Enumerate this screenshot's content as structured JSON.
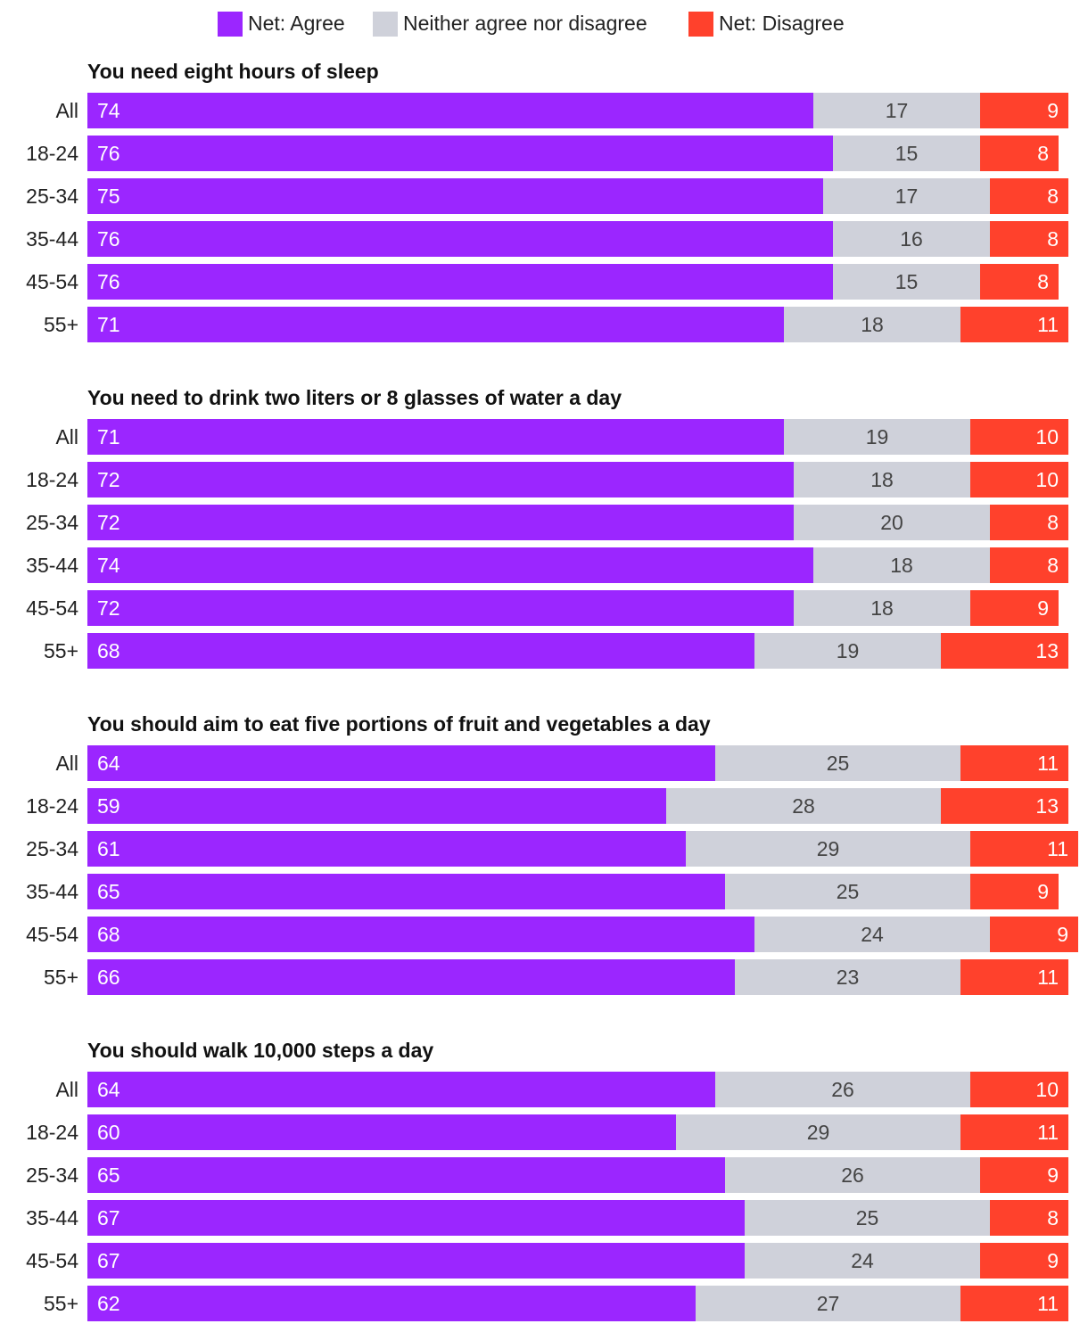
{
  "colors": {
    "agree": "#9b26ff",
    "neutral": "#cfd1da",
    "disagree": "#ff412c"
  },
  "legend": {
    "agree_label": "Net: Agree",
    "neutral_label": "Neither agree nor disagree",
    "disagree_label": "Net: Disagree"
  },
  "chart_data": {
    "type": "bar",
    "orientation": "horizontal",
    "stacked": true,
    "units": "percent",
    "series_names": [
      "Net: Agree",
      "Neither agree nor disagree",
      "Net: Disagree"
    ],
    "categories": [
      "All",
      "18-24",
      "25-34",
      "35-44",
      "45-54",
      "55+"
    ],
    "legend_position": "top-center",
    "grid": false,
    "panels": [
      {
        "title": "You need eight hours of sleep",
        "rows": [
          {
            "label": "All",
            "agree": 74,
            "neutral": 17,
            "disagree": 9
          },
          {
            "label": "18-24",
            "agree": 76,
            "neutral": 15,
            "disagree": 8
          },
          {
            "label": "25-34",
            "agree": 75,
            "neutral": 17,
            "disagree": 8
          },
          {
            "label": "35-44",
            "agree": 76,
            "neutral": 16,
            "disagree": 8
          },
          {
            "label": "45-54",
            "agree": 76,
            "neutral": 15,
            "disagree": 8
          },
          {
            "label": "55+",
            "agree": 71,
            "neutral": 18,
            "disagree": 11
          }
        ]
      },
      {
        "title": "You need to drink two liters or 8 glasses of water a day",
        "rows": [
          {
            "label": "All",
            "agree": 71,
            "neutral": 19,
            "disagree": 10
          },
          {
            "label": "18-24",
            "agree": 72,
            "neutral": 18,
            "disagree": 10
          },
          {
            "label": "25-34",
            "agree": 72,
            "neutral": 20,
            "disagree": 8
          },
          {
            "label": "35-44",
            "agree": 74,
            "neutral": 18,
            "disagree": 8
          },
          {
            "label": "45-54",
            "agree": 72,
            "neutral": 18,
            "disagree": 9
          },
          {
            "label": "55+",
            "agree": 68,
            "neutral": 19,
            "disagree": 13
          }
        ]
      },
      {
        "title": "You should aim to eat five portions of fruit and vegetables a day",
        "rows": [
          {
            "label": "All",
            "agree": 64,
            "neutral": 25,
            "disagree": 11
          },
          {
            "label": "18-24",
            "agree": 59,
            "neutral": 28,
            "disagree": 13
          },
          {
            "label": "25-34",
            "agree": 61,
            "neutral": 29,
            "disagree": 11
          },
          {
            "label": "35-44",
            "agree": 65,
            "neutral": 25,
            "disagree": 9
          },
          {
            "label": "45-54",
            "agree": 68,
            "neutral": 24,
            "disagree": 9
          },
          {
            "label": "55+",
            "agree": 66,
            "neutral": 23,
            "disagree": 11
          }
        ]
      },
      {
        "title": "You should walk 10,000 steps a day",
        "rows": [
          {
            "label": "All",
            "agree": 64,
            "neutral": 26,
            "disagree": 10
          },
          {
            "label": "18-24",
            "agree": 60,
            "neutral": 29,
            "disagree": 11
          },
          {
            "label": "25-34",
            "agree": 65,
            "neutral": 26,
            "disagree": 9
          },
          {
            "label": "35-44",
            "agree": 67,
            "neutral": 25,
            "disagree": 8
          },
          {
            "label": "45-54",
            "agree": 67,
            "neutral": 24,
            "disagree": 9
          },
          {
            "label": "55+",
            "agree": 62,
            "neutral": 27,
            "disagree": 11
          }
        ]
      }
    ]
  }
}
